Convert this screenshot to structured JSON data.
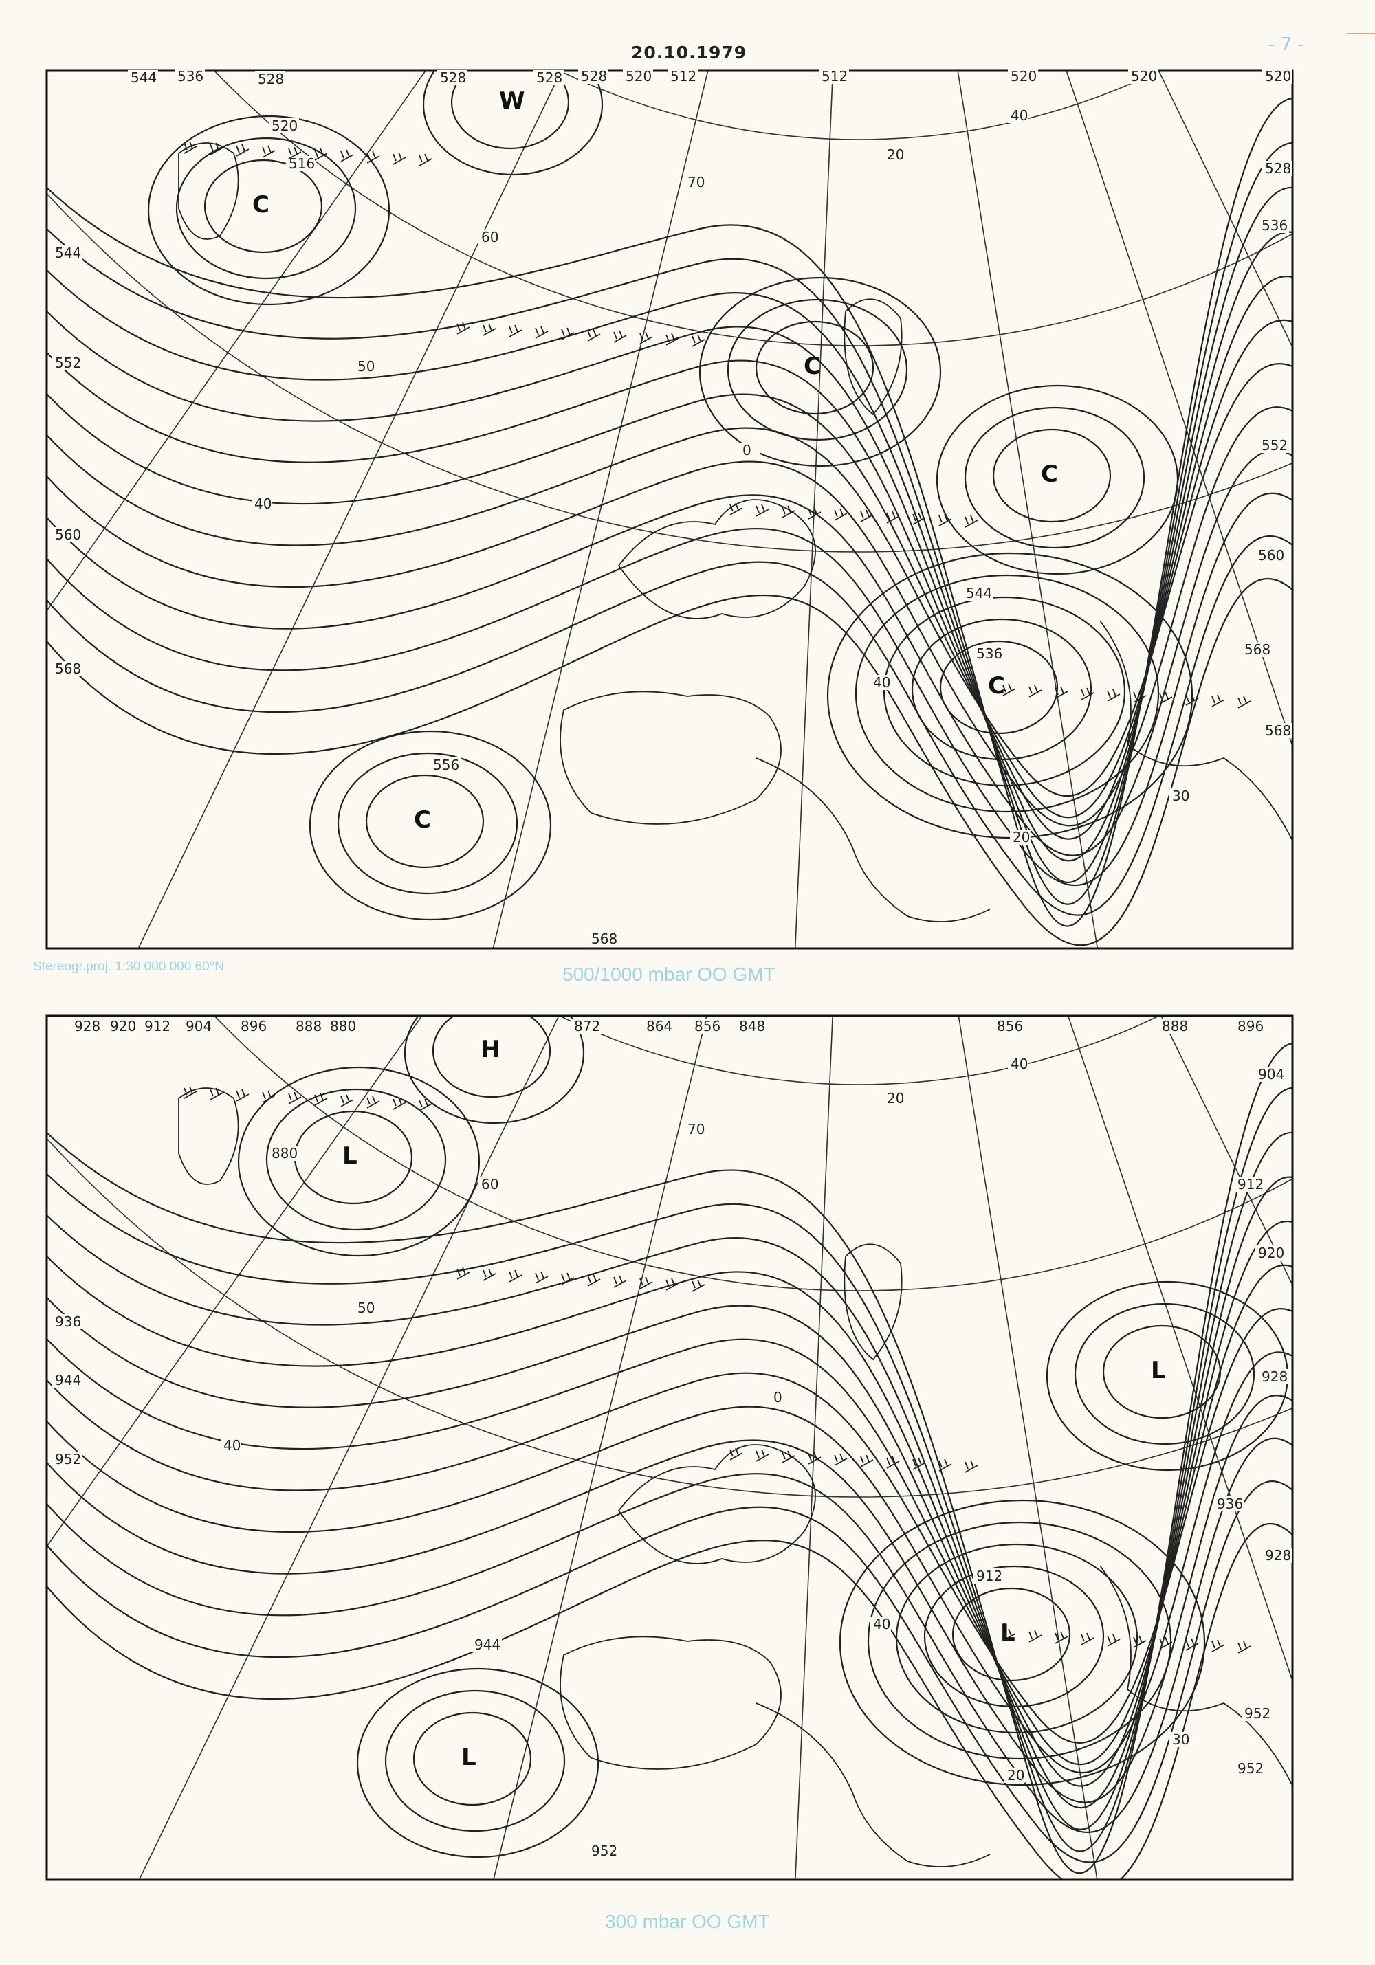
{
  "header": {
    "date": "20.10.1979",
    "page_number": "- 7 -"
  },
  "projection_note": "Stereogr.proj. 1:30 000 000    60°N",
  "maps": [
    {
      "caption": "500/1000 mbar  OO GMT",
      "centers": [
        "W",
        "C",
        "C",
        "C",
        "C",
        "C"
      ],
      "contour_labels": [
        "544",
        "536",
        "528",
        "528",
        "520",
        "516",
        "528",
        "528",
        "520",
        "512",
        "512",
        "520",
        "520",
        "520",
        "528",
        "536",
        "544",
        "552",
        "560",
        "568",
        "568",
        "556",
        "536",
        "544",
        "552",
        "560",
        "568",
        "568"
      ],
      "latitude_labels": [
        "70",
        "60",
        "50",
        "40",
        "40",
        "0",
        "20",
        "30",
        "20",
        "40"
      ]
    },
    {
      "caption": "300 mbar  OO GMT",
      "centers": [
        "H",
        "L",
        "L",
        "L",
        "L"
      ],
      "contour_labels": [
        "928",
        "920",
        "912",
        "904",
        "896",
        "888",
        "880",
        "872",
        "864",
        "856",
        "848",
        "880",
        "856",
        "888",
        "896",
        "904",
        "912",
        "920",
        "928",
        "936",
        "944",
        "952",
        "944",
        "952",
        "912",
        "928",
        "936",
        "952",
        "952"
      ],
      "latitude_labels": [
        "70",
        "60",
        "50",
        "40",
        "40",
        "0",
        "20",
        "30",
        "20",
        "40"
      ]
    }
  ],
  "colors": {
    "caption": "#9ad6e6",
    "ink": "#222222",
    "paper": "#fbf9f1"
  }
}
